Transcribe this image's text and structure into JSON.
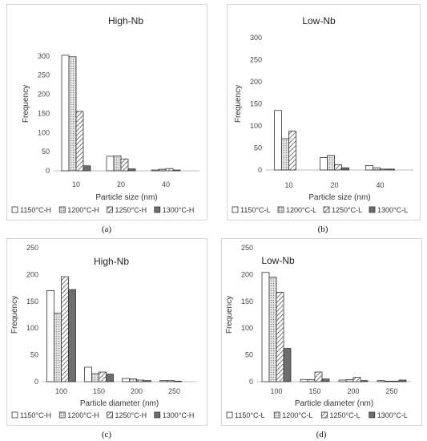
{
  "panel_labels": [
    "(a)",
    "(b)",
    "(c)",
    "(d)"
  ],
  "chart_data": [
    {
      "type": "bar",
      "title": "High-Nb",
      "xlabel": "Particle size (nm)",
      "ylabel": "Frequency",
      "categories": [
        "10",
        "20",
        "40"
      ],
      "ylim": [
        0,
        350
      ],
      "yticks": [
        0,
        50,
        100,
        150,
        200,
        250,
        300
      ],
      "series": [
        {
          "name": "1150°C-H",
          "pattern": "white",
          "values": [
            302,
            38,
            2
          ]
        },
        {
          "name": "1200°C-H",
          "pattern": "dots",
          "values": [
            298,
            39,
            4
          ]
        },
        {
          "name": "1250°C-H",
          "pattern": "hatch",
          "values": [
            155,
            31,
            6
          ]
        },
        {
          "name": "1300°C-H",
          "pattern": "dark",
          "values": [
            13,
            5,
            2
          ]
        }
      ],
      "grid": false,
      "legend_position": "bottom"
    },
    {
      "type": "bar",
      "title": "Low-Nb",
      "xlabel": "Particle size (nm)",
      "ylabel": "Frequency",
      "categories": [
        "10",
        "20",
        "40"
      ],
      "ylim": [
        0,
        300
      ],
      "yticks": [
        0,
        50,
        100,
        150,
        200,
        250,
        300
      ],
      "series": [
        {
          "name": "1150°C-L",
          "pattern": "white",
          "values": [
            135,
            28,
            10
          ]
        },
        {
          "name": "1200°C-L",
          "pattern": "dots",
          "values": [
            71,
            33,
            5
          ]
        },
        {
          "name": "1250°C-L",
          "pattern": "hatch",
          "values": [
            88,
            12,
            2
          ]
        },
        {
          "name": "1300°C-L",
          "pattern": "dark",
          "values": [
            0,
            5,
            2
          ]
        }
      ],
      "grid": false,
      "legend_position": "bottom"
    },
    {
      "type": "bar",
      "title": "High-Nb",
      "xlabel": "Particle diameter (nm)",
      "ylabel": "Frequency",
      "categories": [
        "100",
        "150",
        "200",
        "250"
      ],
      "ylim": [
        0,
        250
      ],
      "yticks": [
        0,
        50,
        100,
        150,
        200,
        250
      ],
      "series": [
        {
          "name": "1150°C-H",
          "pattern": "white",
          "values": [
            170,
            27,
            6,
            2
          ]
        },
        {
          "name": "1200°C-H",
          "pattern": "dots",
          "values": [
            128,
            15,
            5,
            2
          ]
        },
        {
          "name": "1250°C-H",
          "pattern": "hatch",
          "values": [
            196,
            18,
            3,
            1
          ]
        },
        {
          "name": "1300°C-H",
          "pattern": "dark",
          "values": [
            172,
            14,
            2,
            0
          ]
        }
      ],
      "grid": false,
      "legend_position": "bottom"
    },
    {
      "type": "bar",
      "title": "Low-Nb",
      "xlabel": "Particle diameter (nm)",
      "ylabel": "Frequency",
      "categories": [
        "100",
        "150",
        "200",
        "250"
      ],
      "ylim": [
        0,
        250
      ],
      "yticks": [
        0,
        50,
        100,
        150,
        200,
        250
      ],
      "series": [
        {
          "name": "1150°C-L",
          "pattern": "white",
          "values": [
            204,
            4,
            3,
            2
          ]
        },
        {
          "name": "1200°C-L",
          "pattern": "dots",
          "values": [
            195,
            4,
            4,
            1
          ]
        },
        {
          "name": "1250°C-L",
          "pattern": "hatch",
          "values": [
            167,
            18,
            8,
            1
          ]
        },
        {
          "name": "1300°C-L",
          "pattern": "dark",
          "values": [
            62,
            5,
            2,
            3
          ]
        }
      ],
      "grid": false,
      "legend_position": "bottom"
    }
  ]
}
